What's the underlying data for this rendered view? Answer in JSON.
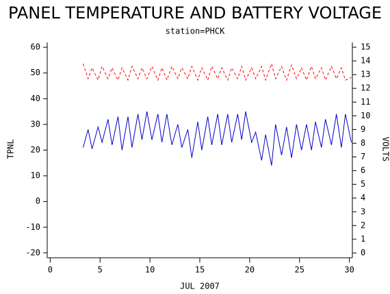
{
  "chart_data": {
    "type": "line",
    "title": "PANEL TEMPERATURE AND BATTERY VOLTAGE",
    "subtitle": "station=PHCK",
    "xlabel": "JUL 2007",
    "ylabel": "TPNL",
    "y2label": "VOLTS",
    "x": [
      3.3,
      3.8,
      4.2,
      4.8,
      5.2,
      5.8,
      6.2,
      6.8,
      7.2,
      7.8,
      8.2,
      8.8,
      9.2,
      9.7,
      10.2,
      10.8,
      11.2,
      11.7,
      12.2,
      12.8,
      13.2,
      13.8,
      14.2,
      14.8,
      15.2,
      15.8,
      16.2,
      16.8,
      17.2,
      17.8,
      18.2,
      18.8,
      19.2,
      19.6,
      20.2,
      20.6,
      21.2,
      21.6,
      22.2,
      22.6,
      23.2,
      23.7,
      24.2,
      24.7,
      25.2,
      25.7,
      26.2,
      26.6,
      27.2,
      27.6,
      28.2,
      28.7,
      29.2,
      29.6,
      30.2
    ],
    "series": [
      {
        "name": "TPNL",
        "color": "#0000cc",
        "dash": false,
        "values": [
          21,
          28,
          20.5,
          29,
          23,
          32,
          22,
          33,
          20,
          33,
          21,
          34,
          24,
          35,
          24,
          34,
          23,
          34,
          22,
          30,
          21,
          28,
          17,
          31,
          20,
          33,
          22,
          34,
          22,
          34,
          23,
          34,
          24,
          35,
          23,
          27,
          16,
          26,
          14,
          30,
          18,
          29,
          17,
          30,
          20,
          30,
          20,
          31,
          21,
          32,
          22,
          34,
          21,
          34,
          23
        ]
      },
      {
        "name": "VOLTS",
        "color": "#ff0000",
        "dash": true,
        "axis": "y2",
        "values": [
          13.8,
          12.7,
          13.5,
          12.6,
          13.6,
          12.7,
          13.5,
          12.6,
          13.5,
          12.6,
          13.6,
          12.7,
          13.5,
          12.7,
          13.6,
          12.6,
          13.5,
          12.6,
          13.6,
          12.7,
          13.5,
          12.7,
          13.6,
          12.6,
          13.5,
          12.6,
          13.6,
          12.7,
          13.5,
          12.6,
          13.5,
          12.7,
          13.6,
          12.6,
          13.5,
          12.7,
          13.6,
          12.6,
          13.8,
          12.7,
          13.6,
          12.6,
          13.7,
          12.7,
          13.5,
          12.6,
          13.6,
          12.7,
          13.5,
          12.6,
          13.6,
          12.7,
          13.5,
          12.6,
          12.8
        ]
      }
    ],
    "xlim": [
      -0.3,
      30.3
    ],
    "xticks": [
      0,
      5,
      10,
      15,
      20,
      25,
      30
    ],
    "ylim": [
      -21.9,
      61.9
    ],
    "yticks": [
      -20,
      -10,
      0,
      10,
      20,
      30,
      40,
      50,
      60
    ],
    "y2lim": [
      -0.35,
      15.35
    ],
    "y2ticks": [
      0,
      1,
      2,
      3,
      4,
      5,
      6,
      7,
      8,
      9,
      10,
      11,
      12,
      13,
      14,
      15
    ]
  }
}
